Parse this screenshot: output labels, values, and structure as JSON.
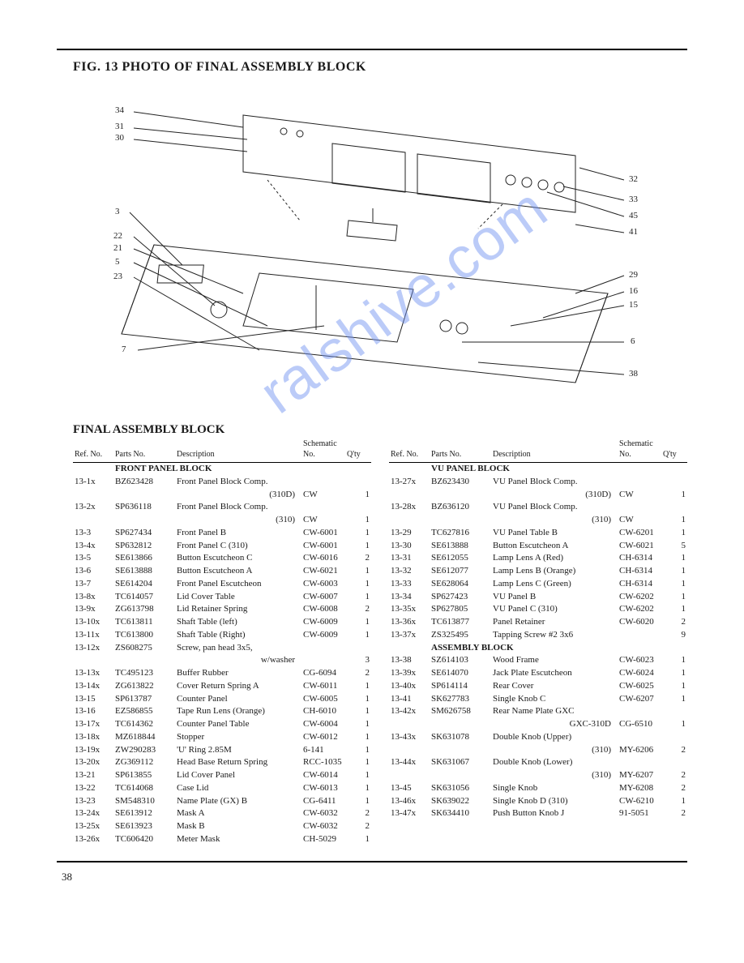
{
  "fig_title": "FIG. 13  PHOTO OF FINAL ASSEMBLY BLOCK",
  "section_title": "FINAL ASSEMBLY BLOCK",
  "page_number": "38",
  "watermark_text": "ralshive.com",
  "headers": {
    "ref": "Ref.\nNo.",
    "parts": "Parts No.",
    "desc": "Description",
    "schem": "Schematic\nNo.",
    "qty": "Q'ty"
  },
  "callouts_left": [
    "34",
    "31",
    "30",
    "3",
    "22",
    "21",
    "5",
    "23",
    "7"
  ],
  "callouts_right": [
    "32",
    "33",
    "45",
    "41",
    "29",
    "16",
    "15",
    "6",
    "38"
  ],
  "left_table": {
    "subhead1": "FRONT PANEL BLOCK",
    "rows": [
      {
        "ref": "13-1x",
        "pn": "BZ623428",
        "desc": "Front Panel Block Comp.",
        "desc2": "(310D)",
        "sch": "CW",
        "qty": "1"
      },
      {
        "ref": "13-2x",
        "pn": "SP636118",
        "desc": "Front Panel Block Comp.",
        "desc2": "(310)",
        "sch": "CW",
        "qty": "1"
      },
      {
        "ref": "13-3",
        "pn": "SP627434",
        "desc": "Front Panel B",
        "sch": "CW-6001",
        "qty": "1"
      },
      {
        "ref": "13-4x",
        "pn": "SP632812",
        "desc": "Front Panel C (310)",
        "sch": "CW-6001",
        "qty": "1"
      },
      {
        "ref": "13-5",
        "pn": "SE613866",
        "desc": "Button Escutcheon C",
        "sch": "CW-6016",
        "qty": "2"
      },
      {
        "ref": "13-6",
        "pn": "SE613888",
        "desc": "Button Escutcheon A",
        "sch": "CW-6021",
        "qty": "1"
      },
      {
        "ref": "13-7",
        "pn": "SE614204",
        "desc": "Front Panel Escutcheon",
        "sch": "CW-6003",
        "qty": "1"
      },
      {
        "ref": "13-8x",
        "pn": "TC614057",
        "desc": "Lid Cover Table",
        "sch": "CW-6007",
        "qty": "1"
      },
      {
        "ref": "13-9x",
        "pn": "ZG613798",
        "desc": "Lid Retainer Spring",
        "sch": "CW-6008",
        "qty": "2"
      },
      {
        "ref": "13-10x",
        "pn": "TC613811",
        "desc": "Shaft Table (left)",
        "sch": "CW-6009",
        "qty": "1"
      },
      {
        "ref": "13-11x",
        "pn": "TC613800",
        "desc": "Shaft Table (Right)",
        "sch": "CW-6009",
        "qty": "1"
      },
      {
        "ref": "13-12x",
        "pn": "ZS608275",
        "desc": "Screw, pan head 3x5,",
        "desc2": "w/washer",
        "sch": "",
        "qty": "3"
      },
      {
        "ref": "13-13x",
        "pn": "TC495123",
        "desc": "Buffer Rubber",
        "sch": "CG-6094",
        "qty": "2"
      },
      {
        "ref": "13-14x",
        "pn": "ZG613822",
        "desc": "Cover Return Spring A",
        "sch": "CW-6011",
        "qty": "1"
      },
      {
        "ref": "13-15",
        "pn": "SP613787",
        "desc": "Counter Panel",
        "sch": "CW-6005",
        "qty": "1"
      },
      {
        "ref": "13-16",
        "pn": "EZ586855",
        "desc": "Tape Run Lens (Orange)",
        "sch": "CH-6010",
        "qty": "1"
      },
      {
        "ref": "13-17x",
        "pn": "TC614362",
        "desc": "Counter Panel Table",
        "sch": "CW-6004",
        "qty": "1"
      },
      {
        "ref": "13-18x",
        "pn": "MZ618844",
        "desc": "Stopper",
        "sch": "CW-6012",
        "qty": "1"
      },
      {
        "ref": "13-19x",
        "pn": "ZW290283",
        "desc": "'U' Ring 2.85M",
        "sch": "6-141",
        "qty": "1"
      },
      {
        "ref": "13-20x",
        "pn": "ZG369112",
        "desc": "Head Base Return Spring",
        "sch": "RCC-1035",
        "qty": "1"
      },
      {
        "ref": "13-21",
        "pn": "SP613855",
        "desc": "Lid Cover Panel",
        "sch": "CW-6014",
        "qty": "1"
      },
      {
        "ref": "13-22",
        "pn": "TC614068",
        "desc": "Case Lid",
        "sch": "CW-6013",
        "qty": "1"
      },
      {
        "ref": "13-23",
        "pn": "SM548310",
        "desc": "Name Plate (GX) B",
        "sch": "CG-6411",
        "qty": "1"
      },
      {
        "ref": "13-24x",
        "pn": "SE613912",
        "desc": "Mask A",
        "sch": "CW-6032",
        "qty": "2"
      },
      {
        "ref": "13-25x",
        "pn": "SE613923",
        "desc": "Mask B",
        "sch": "CW-6032",
        "qty": "2"
      },
      {
        "ref": "13-26x",
        "pn": "TC606420",
        "desc": "Meter Mask",
        "sch": "CH-5029",
        "qty": "1"
      }
    ]
  },
  "right_table": {
    "subhead1": "VU PANEL BLOCK",
    "rows1": [
      {
        "ref": "13-27x",
        "pn": "BZ623430",
        "desc": "VU Panel Block Comp.",
        "desc2": "(310D)",
        "sch": "CW",
        "qty": "1"
      },
      {
        "ref": "13-28x",
        "pn": "BZ636120",
        "desc": "VU Panel Block Comp.",
        "desc2": "(310)",
        "sch": "CW",
        "qty": "1"
      },
      {
        "ref": "13-29",
        "pn": "TC627816",
        "desc": "VU Panel Table B",
        "sch": "CW-6201",
        "qty": "1"
      },
      {
        "ref": "13-30",
        "pn": "SE613888",
        "desc": "Button Escutcheon A",
        "sch": "CW-6021",
        "qty": "5"
      },
      {
        "ref": "13-31",
        "pn": "SE612055",
        "desc": "Lamp Lens A (Red)",
        "sch": "CH-6314",
        "qty": "1"
      },
      {
        "ref": "13-32",
        "pn": "SE612077",
        "desc": "Lamp Lens B (Orange)",
        "sch": "CH-6314",
        "qty": "1"
      },
      {
        "ref": "13-33",
        "pn": "SE628064",
        "desc": "Lamp Lens C (Green)",
        "sch": "CH-6314",
        "qty": "1"
      },
      {
        "ref": "13-34",
        "pn": "SP627423",
        "desc": "VU Panel B",
        "sch": "CW-6202",
        "qty": "1"
      },
      {
        "ref": "13-35x",
        "pn": "SP627805",
        "desc": "VU Panel C (310)",
        "sch": "CW-6202",
        "qty": "1"
      },
      {
        "ref": "13-36x",
        "pn": "TC613877",
        "desc": "Panel Retainer",
        "sch": "CW-6020",
        "qty": "2"
      },
      {
        "ref": "13-37x",
        "pn": "ZS325495",
        "desc": "Tapping Screw #2 3x6",
        "sch": "",
        "qty": "9"
      }
    ],
    "subhead2": "ASSEMBLY BLOCK",
    "rows2": [
      {
        "ref": "13-38",
        "pn": "SZ614103",
        "desc": "Wood Frame",
        "sch": "CW-6023",
        "qty": "1"
      },
      {
        "ref": "13-39x",
        "pn": "SE614070",
        "desc": "Jack Plate Escutcheon",
        "sch": "CW-6024",
        "qty": "1"
      },
      {
        "ref": "13-40x",
        "pn": "SP614114",
        "desc": "Rear Cover",
        "sch": "CW-6025",
        "qty": "1"
      },
      {
        "ref": "13-41",
        "pn": "SK627783",
        "desc": "Single Knob C",
        "sch": "CW-6207",
        "qty": "1"
      },
      {
        "ref": "13-42x",
        "pn": "SM626758",
        "desc": "Rear Name Plate GXC",
        "desc2": "GXC-310D",
        "sch": "CG-6510",
        "qty": "1"
      },
      {
        "ref": "13-43x",
        "pn": "SK631078",
        "desc": "Double Knob (Upper)",
        "desc2": "(310)",
        "sch": "MY-6206",
        "qty": "2"
      },
      {
        "ref": "13-44x",
        "pn": "SK631067",
        "desc": "Double Knob (Lower)",
        "desc2": "(310)",
        "sch": "MY-6207",
        "qty": "2"
      },
      {
        "ref": "13-45",
        "pn": "SK631056",
        "desc": "Single Knob",
        "sch": "MY-6208",
        "qty": "2"
      },
      {
        "ref": "13-46x",
        "pn": "SK639022",
        "desc": "Single Knob D (310)",
        "sch": "CW-6210",
        "qty": "1"
      },
      {
        "ref": "13-47x",
        "pn": "SK634410",
        "desc": "Push Button Knob J",
        "sch": "91-5051",
        "qty": "2"
      }
    ]
  }
}
